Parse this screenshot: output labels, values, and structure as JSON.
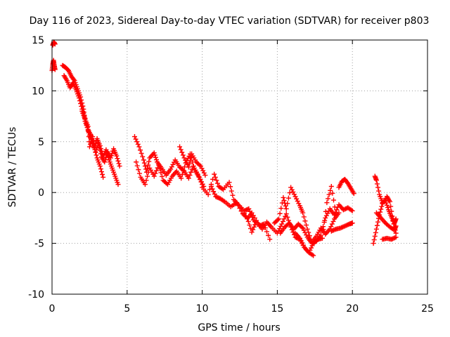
{
  "chart_data": {
    "type": "scatter",
    "title": "Day 116 of 2023, Sidereal Day-to-day VTEC variation (SDTVAR) for receiver p803",
    "xlabel": "GPS time / hours",
    "ylabel": "SDTVAR / TECUs",
    "xlim": [
      0,
      25
    ],
    "ylim": [
      -10,
      15
    ],
    "xticks": [
      0,
      5,
      10,
      15,
      20,
      25
    ],
    "yticks": [
      -10,
      -5,
      0,
      5,
      10,
      15
    ],
    "xtick_labels": [
      "0",
      "5",
      "10",
      "15",
      "20",
      "25"
    ],
    "ytick_labels": [
      "-10",
      "-5",
      "0",
      "5",
      "10",
      "15"
    ],
    "grid": true,
    "marker": "+",
    "color": "#ff0000",
    "series": [
      {
        "name": "s1",
        "x": [
          0.0,
          0.05,
          0.1,
          0.15,
          0.2
        ],
        "y": [
          12.0,
          12.6,
          13.0,
          12.5,
          12.1
        ]
      },
      {
        "name": "s2",
        "x": [
          0.05,
          0.12,
          0.2
        ],
        "y": [
          14.5,
          14.8,
          14.6
        ]
      },
      {
        "name": "s3",
        "x": [
          0.7,
          0.9,
          1.1,
          1.3,
          1.5,
          1.7,
          1.9,
          2.1,
          2.2,
          2.4,
          2.6,
          2.8,
          3.0,
          3.2,
          3.4
        ],
        "y": [
          12.5,
          12.3,
          12.0,
          11.4,
          11.0,
          10.2,
          9.4,
          8.2,
          7.0,
          6.2,
          5.6,
          4.5,
          3.4,
          2.6,
          1.5
        ]
      },
      {
        "name": "s4",
        "x": [
          0.8,
          1.0,
          1.2,
          1.4,
          1.6,
          1.8,
          2.0,
          2.2,
          2.4,
          2.6,
          2.8,
          3.0,
          3.2,
          3.4,
          3.6,
          3.8,
          4.0,
          4.2,
          4.4
        ],
        "y": [
          11.5,
          11.0,
          10.3,
          10.8,
          10.1,
          9.3,
          8.2,
          7.3,
          6.1,
          5.2,
          4.4,
          5.3,
          4.6,
          3.5,
          4.2,
          3.2,
          2.4,
          1.6,
          0.8
        ]
      },
      {
        "name": "s5",
        "x": [
          2.0,
          2.2,
          2.4,
          2.5,
          2.7,
          2.9,
          3.1,
          3.3,
          3.5,
          3.7,
          3.9,
          4.1,
          4.3,
          4.5
        ],
        "y": [
          8.0,
          7.2,
          6.5,
          4.5,
          5.5,
          4.0,
          4.8,
          3.5,
          3.0,
          4.0,
          3.4,
          4.3,
          3.6,
          2.6
        ]
      },
      {
        "name": "s6",
        "x": [
          5.5,
          5.8,
          6.1,
          6.3,
          6.5,
          6.8,
          7.0,
          7.3,
          7.6,
          7.9,
          8.2,
          8.5,
          8.8,
          9.1,
          9.4,
          9.7,
          10.0
        ],
        "y": [
          5.5,
          4.5,
          3.2,
          2.0,
          3.4,
          3.9,
          3.0,
          2.4,
          1.7,
          2.3,
          3.2,
          2.5,
          2.1,
          1.4,
          2.6,
          1.8,
          0.8
        ]
      },
      {
        "name": "s7",
        "x": [
          5.6,
          5.9,
          6.2,
          6.5,
          6.8,
          7.1,
          7.4,
          7.7,
          8.0,
          8.3,
          8.6,
          8.9,
          9.2,
          9.5,
          9.8,
          10.1
        ],
        "y": [
          3.0,
          1.5,
          0.8,
          2.4,
          1.6,
          2.7,
          1.2,
          0.8,
          1.6,
          2.1,
          1.4,
          2.9,
          3.8,
          2.2,
          1.5,
          0.6
        ]
      },
      {
        "name": "s8",
        "x": [
          8.5,
          8.8,
          9.1,
          9.3,
          9.6,
          9.9,
          10.2
        ],
        "y": [
          4.5,
          3.4,
          2.5,
          3.8,
          3.0,
          2.6,
          1.7
        ]
      },
      {
        "name": "s9",
        "x": [
          10.0,
          10.4,
          10.8,
          11.1,
          11.4,
          11.8,
          12.1,
          12.4,
          12.8,
          13.1,
          13.4,
          13.8,
          14.1,
          14.5
        ],
        "y": [
          0.5,
          -0.2,
          1.8,
          0.6,
          0.3,
          1.0,
          -0.7,
          -1.2,
          -1.8,
          -1.6,
          -2.7,
          -3.3,
          -3.1,
          -4.6
        ]
      },
      {
        "name": "s10",
        "x": [
          10.6,
          10.9,
          11.2,
          11.5,
          11.9,
          12.3,
          12.7,
          13.0,
          13.3,
          13.6
        ],
        "y": [
          0.6,
          -0.4,
          -0.6,
          -0.9,
          -1.4,
          -1.0,
          -2.1,
          -2.5,
          -3.9,
          -2.9
        ]
      },
      {
        "name": "s11",
        "x": [
          12.6,
          13.0,
          13.3,
          13.7,
          14.0,
          14.3,
          14.6,
          15.0,
          15.3,
          15.6,
          15.9,
          16.2,
          16.5,
          16.8,
          17.1,
          17.4
        ],
        "y": [
          -1.5,
          -2.6,
          -2.0,
          -3.0,
          -3.6,
          -2.9,
          -3.4,
          -4.0,
          -3.1,
          -2.1,
          -3.4,
          -4.4,
          -4.6,
          -5.4,
          -5.9,
          -6.2
        ]
      },
      {
        "name": "s12",
        "x": [
          14.8,
          15.1,
          15.4,
          15.6,
          15.9,
          16.2,
          16.5,
          16.7,
          17.0,
          17.3,
          17.6,
          17.9,
          18.2,
          18.5,
          18.8,
          19.1
        ],
        "y": [
          -3.0,
          -2.6,
          -0.5,
          -1.6,
          0.5,
          -0.4,
          -1.3,
          -2.0,
          -3.6,
          -4.9,
          -4.3,
          -3.5,
          -4.1,
          -3.6,
          -2.6,
          -2.0
        ]
      },
      {
        "name": "s13",
        "x": [
          15.2,
          15.5,
          15.8,
          16.1,
          16.4,
          16.7,
          17.0,
          17.3,
          17.6,
          17.9,
          18.2,
          18.5,
          18.8,
          19.1,
          19.4,
          19.7,
          20.0
        ],
        "y": [
          -4.0,
          -3.4,
          -3.0,
          -3.6,
          -3.1,
          -3.5,
          -4.4,
          -5.0,
          -4.8,
          -4.2,
          -2.5,
          -1.6,
          -2.2,
          -1.2,
          -1.7,
          -1.5,
          -1.8
        ]
      },
      {
        "name": "s14",
        "x": [
          16.2,
          16.5,
          16.8,
          17.1,
          17.4,
          17.7,
          18.0,
          18.3,
          18.6,
          18.9
        ],
        "y": [
          -4.0,
          -4.5,
          -5.4,
          -5.9,
          -5.0,
          -4.6,
          -4.5,
          -1.0,
          0.6,
          -2.1
        ]
      },
      {
        "name": "s15",
        "x": [
          19.1,
          19.3,
          19.5,
          19.7,
          19.9,
          20.1
        ],
        "y": [
          0.5,
          1.1,
          1.3,
          0.9,
          0.4,
          -0.1
        ]
      },
      {
        "name": "s16",
        "x": [
          18.6,
          18.9,
          19.2,
          19.5,
          19.8,
          20.0
        ],
        "y": [
          -3.8,
          -3.6,
          -3.5,
          -3.3,
          -3.1,
          -3.0
        ]
      },
      {
        "name": "s17",
        "x": [
          21.5,
          21.6,
          21.8,
          22.0,
          22.2,
          22.4,
          22.6,
          22.8,
          22.9
        ],
        "y": [
          1.6,
          1.2,
          -0.2,
          -1.0,
          -0.8,
          -1.7,
          -2.4,
          -3.0,
          -2.6
        ]
      },
      {
        "name": "s18",
        "x": [
          21.4,
          21.6,
          21.8,
          22.0,
          22.3,
          22.5,
          22.7,
          22.9
        ],
        "y": [
          -5.0,
          -3.6,
          -2.2,
          -1.1,
          -0.4,
          -0.9,
          -2.8,
          -4.0
        ]
      },
      {
        "name": "s19",
        "x": [
          21.6,
          21.9,
          22.2,
          22.5,
          22.8,
          22.9
        ],
        "y": [
          -2.0,
          -2.5,
          -3.0,
          -3.4,
          -3.7,
          -3.3
        ]
      },
      {
        "name": "s20",
        "x": [
          22.0,
          22.3,
          22.6,
          22.9
        ],
        "y": [
          -4.6,
          -4.5,
          -4.6,
          -4.4
        ]
      }
    ]
  }
}
